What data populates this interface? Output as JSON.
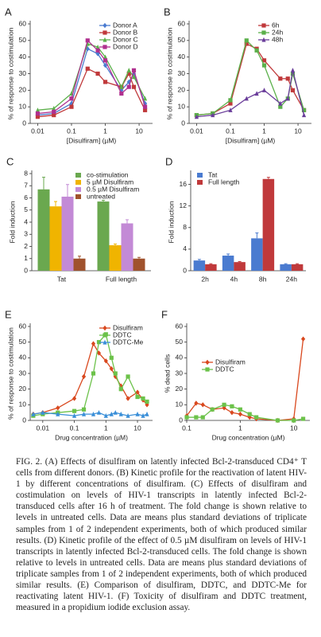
{
  "chart_data": [
    {
      "type": "line",
      "panel": "A",
      "xscale": "log",
      "xlabel": "[Disulfiram] (µM)",
      "ylabel": "% of response to costimulation",
      "x": [
        0.01,
        0.03,
        0.1,
        0.3,
        0.6,
        1,
        3,
        5,
        7,
        15
      ],
      "xlim": [
        0.006,
        25
      ],
      "xticks": [
        0.01,
        0.1,
        1,
        10
      ],
      "ylim": [
        0,
        60
      ],
      "yticks": [
        0,
        10,
        20,
        30,
        40,
        50,
        60
      ],
      "legend": "upper right",
      "series": [
        {
          "name": "Donor A",
          "color": "#4a7bd0",
          "marker": "diamond",
          "values": [
            5,
            6,
            12,
            45,
            42,
            35,
            20,
            25,
            30,
            12
          ]
        },
        {
          "name": "Donor B",
          "color": "#c0393b",
          "marker": "square",
          "values": [
            4,
            5,
            10,
            33,
            30,
            25,
            22,
            30,
            22,
            8
          ]
        },
        {
          "name": "Donor C",
          "color": "#5bb04a",
          "marker": "triangle",
          "values": [
            8,
            9,
            18,
            48,
            46,
            40,
            22,
            32,
            28,
            15
          ]
        },
        {
          "name": "Donor D",
          "color": "#b0308f",
          "marker": "square",
          "values": [
            6,
            7,
            15,
            50,
            44,
            38,
            18,
            22,
            32,
            10
          ]
        }
      ]
    },
    {
      "type": "line",
      "panel": "B",
      "xscale": "log",
      "xlabel": "[Disulfiram] (µM)",
      "ylabel": "% of response to costimulation",
      "x": [
        0.01,
        0.03,
        0.1,
        0.3,
        0.6,
        1,
        3,
        5,
        7,
        15
      ],
      "xlim": [
        0.006,
        25
      ],
      "xticks": [
        0.01,
        0.1,
        1,
        10
      ],
      "ylim": [
        0,
        60
      ],
      "yticks": [
        0,
        10,
        20,
        30,
        40,
        50,
        60
      ],
      "legend": "upper right",
      "series": [
        {
          "name": "6h",
          "color": "#c0393b",
          "marker": "square",
          "values": [
            5,
            6,
            12,
            48,
            45,
            38,
            27,
            27,
            20,
            8
          ]
        },
        {
          "name": "24h",
          "color": "#5bb04a",
          "marker": "square",
          "values": [
            5,
            6,
            14,
            50,
            44,
            35,
            10,
            15,
            30,
            8
          ]
        },
        {
          "name": "48h",
          "color": "#6a3d9a",
          "marker": "triangle",
          "values": [
            4,
            5,
            8,
            15,
            18,
            20,
            12,
            15,
            32,
            5
          ]
        }
      ]
    },
    {
      "type": "bar",
      "panel": "C",
      "ylabel": "Fold induction",
      "categories": [
        "Tat",
        "Full length"
      ],
      "ylim": [
        0,
        8
      ],
      "yticks": [
        0,
        1,
        2,
        3,
        4,
        5,
        6,
        7,
        8
      ],
      "legend": "upper right",
      "series": [
        {
          "name": "co-stimulation",
          "color": "#6aa84f",
          "values": [
            6.7,
            5.7
          ],
          "errors": [
            1.0,
            0.1
          ]
        },
        {
          "name": "5 µM Disulfiram",
          "color": "#f0b400",
          "values": [
            5.3,
            2.1
          ],
          "errors": [
            0.4,
            0.1
          ]
        },
        {
          "name": "0.5 µM Disulfiram",
          "color": "#c38ad6",
          "values": [
            6.1,
            3.9
          ],
          "errors": [
            1.0,
            0.3
          ]
        },
        {
          "name": "untreated",
          "color": "#a0522d",
          "values": [
            1.0,
            1.0
          ],
          "errors": [
            0.2,
            0.1
          ]
        }
      ]
    },
    {
      "type": "bar",
      "panel": "D",
      "ylabel": "Fold induction",
      "categories": [
        "2h",
        "4h",
        "8h",
        "24h"
      ],
      "ylim": [
        0,
        18
      ],
      "yticks": [
        0,
        4,
        8,
        12,
        16
      ],
      "legend": "upper left",
      "series": [
        {
          "name": "Tat",
          "color": "#4a7bd0",
          "values": [
            1.9,
            2.8,
            6.0,
            1.2
          ],
          "errors": [
            0.2,
            0.3,
            1.0,
            0.1
          ]
        },
        {
          "name": "Full length",
          "color": "#c0393b",
          "values": [
            1.2,
            1.6,
            17.0,
            1.2
          ],
          "errors": [
            0.1,
            0.1,
            0.3,
            0.1
          ]
        }
      ]
    },
    {
      "type": "line",
      "panel": "E",
      "xscale": "log",
      "xlabel": "Drug concentration (µM)",
      "ylabel": "% of response to costimulation",
      "x": [
        0.005,
        0.01,
        0.03,
        0.1,
        0.2,
        0.4,
        0.6,
        1,
        1.5,
        2,
        3,
        5,
        10,
        15,
        20
      ],
      "xlim": [
        0.004,
        30
      ],
      "xticks": [
        0.01,
        0.1,
        1,
        10
      ],
      "ylim": [
        0,
        60
      ],
      "yticks": [
        0,
        10,
        20,
        30,
        40,
        50,
        60
      ],
      "legend": "upper right",
      "series": [
        {
          "name": "Disulfiram",
          "color": "#d9481e",
          "marker": "diamond",
          "values": [
            4,
            5,
            8,
            14,
            28,
            49,
            43,
            38,
            33,
            28,
            22,
            14,
            18,
            13,
            10
          ]
        },
        {
          "name": "DDTC",
          "color": "#6cc24a",
          "marker": "square",
          "values": [
            3,
            4,
            5,
            6,
            7,
            30,
            50,
            55,
            40,
            30,
            20,
            28,
            15,
            14,
            12
          ]
        },
        {
          "name": "DDTC-Me",
          "color": "#3a8fd8",
          "marker": "triangle",
          "values": [
            4,
            5,
            4,
            3,
            4,
            4,
            5,
            3,
            4,
            5,
            4,
            3,
            4,
            3,
            4
          ]
        }
      ]
    },
    {
      "type": "line",
      "panel": "F",
      "xscale": "log",
      "xlabel": "Drug concentration (µM)",
      "ylabel": "% dead cells",
      "x": [
        0.1,
        0.15,
        0.2,
        0.3,
        0.5,
        0.7,
        1,
        1.5,
        2,
        5,
        10,
        15
      ],
      "xlim": [
        0.1,
        20
      ],
      "xticks": [
        0.1,
        1,
        10
      ],
      "ylim": [
        0,
        60
      ],
      "yticks": [
        0,
        10,
        20,
        30,
        40,
        50,
        60
      ],
      "legend": "center",
      "series": [
        {
          "name": "Disulfiram",
          "color": "#d9481e",
          "marker": "diamond",
          "values": [
            3,
            11,
            10,
            7,
            8,
            5,
            4,
            2,
            1,
            0,
            1,
            52
          ]
        },
        {
          "name": "DDTC",
          "color": "#6cc24a",
          "marker": "square",
          "values": [
            2,
            2,
            2,
            7,
            10,
            9,
            7,
            4,
            2,
            0,
            0,
            1
          ]
        }
      ]
    }
  ],
  "caption": "FIG. 2. (A) Effects of disulfiram on latently infected Bcl-2-transduced CD4⁺ T cells from different donors. (B) Kinetic profile for the reactivation of latent HIV-1 by different concentrations of disulfiram. (C) Effects of disulfiram and costimulation on levels of HIV-1 transcripts in latently infected Bcl-2-transduced cells after 16 h of treatment. The fold change is shown relative to levels in untreated cells. Data are means plus standard deviations of triplicate samples from 1 of 2 independent experiments, both of which produced similar results. (D) Kinetic profile of the effect of 0.5 µM disulfiram on levels of HIV-1 transcripts in latently infected Bcl-2-transduced cells. The fold change is shown relative to levels in untreated cells. Data are means plus standard deviations of triplicate samples from 1 of 2 independent experiments, both of which produced similar results. (E) Comparison of disulfiram, DDTC, and DDTC-Me for reactivating latent HIV-1. (F) Toxicity of disulfiram and DDTC treatment, measured in a propidium iodide exclusion assay."
}
